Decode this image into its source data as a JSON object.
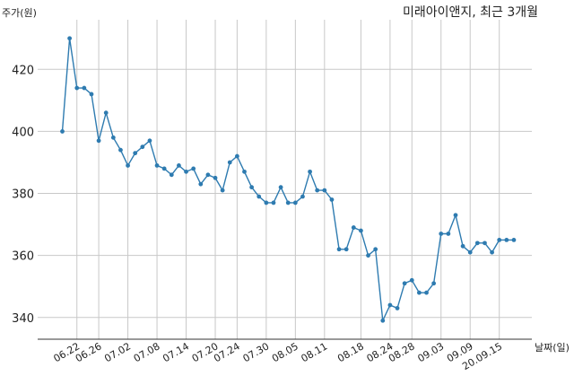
{
  "chart_data": {
    "type": "line",
    "title": "미래아이앤지, 최근 3개월",
    "ylabel": "주가(원)",
    "xlabel": "날짜(일)",
    "ylim": [
      333,
      436
    ],
    "yticks": [
      340,
      360,
      380,
      400,
      420
    ],
    "grid": true,
    "colors": {
      "line": "#2e7bb0",
      "grid": "#c8c8c8",
      "axis": "#333333"
    },
    "xtick_labels": [
      "06.22",
      "06.26",
      "07.02",
      "07.08",
      "07.14",
      "07.20",
      "07.24",
      "07.30",
      "08.05",
      "08.11",
      "08.18",
      "08.24",
      "08.28",
      "09.03",
      "09.09",
      "20.09.15"
    ],
    "xtick_positions": [
      2,
      5,
      9,
      13,
      17,
      21,
      24,
      28,
      32,
      36,
      41,
      45,
      48,
      52,
      56,
      60
    ],
    "series": [
      {
        "values": [
          400,
          430,
          414,
          414,
          412,
          397,
          406,
          398,
          394,
          389,
          393,
          395,
          397,
          389,
          388,
          386,
          389,
          387,
          388,
          383,
          386,
          385,
          381,
          390,
          392,
          387,
          382,
          379,
          377,
          377,
          382,
          377,
          377,
          379,
          387,
          381,
          381,
          378,
          362,
          362,
          369,
          368,
          360,
          362,
          339,
          344,
          343,
          351,
          352,
          348,
          348,
          351,
          367,
          367,
          373,
          363,
          361,
          364,
          364,
          361,
          365,
          365,
          365
        ]
      }
    ]
  }
}
